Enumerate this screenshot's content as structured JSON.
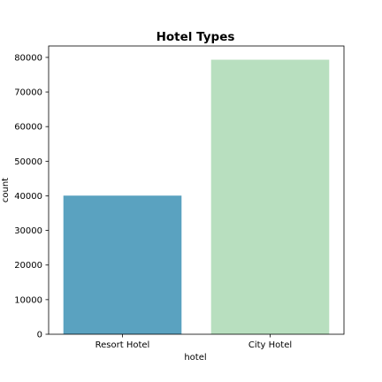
{
  "chart_data": {
    "type": "bar",
    "title": "Hotel Types",
    "xlabel": "hotel",
    "ylabel": "count",
    "categories": [
      "Resort Hotel",
      "City Hotel"
    ],
    "values": [
      40060,
      79330
    ],
    "colors": [
      "#5aa2c0",
      "#b8dfbf"
    ],
    "ylim": [
      0,
      83300
    ],
    "yticks": [
      0,
      10000,
      20000,
      30000,
      40000,
      50000,
      60000,
      70000,
      80000
    ],
    "ytick_labels": [
      "0",
      "10000",
      "20000",
      "30000",
      "40000",
      "50000",
      "60000",
      "70000",
      "80000"
    ],
    "grid": false,
    "legend": "none"
  }
}
